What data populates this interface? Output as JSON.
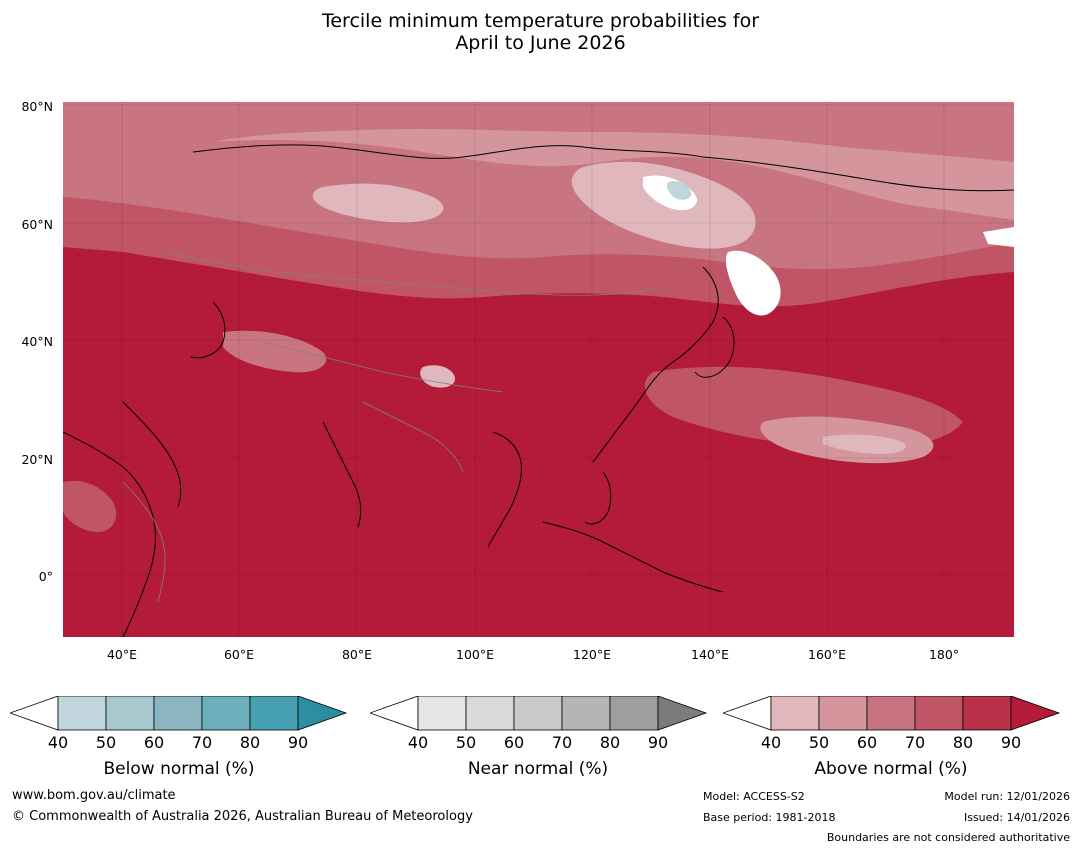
{
  "title_line1": "Tercile minimum temperature probabilities for",
  "title_line2": "April to June 2026",
  "lat_ticks": [
    "80°N",
    "60°N",
    "40°N",
    "20°N",
    "0°"
  ],
  "lon_ticks": [
    "40°E",
    "60°E",
    "80°E",
    "100°E",
    "120°E",
    "140°E",
    "160°E",
    "180°"
  ],
  "colorbars": [
    {
      "label": "Below normal (%)",
      "ticks": [
        "40",
        "50",
        "60",
        "70",
        "80",
        "90"
      ],
      "colors": [
        "#c0d6dc",
        "#a8c8cf",
        "#8bb5c0",
        "#6daebd",
        "#47a1b2",
        "#2b8ea2"
      ]
    },
    {
      "label": "Near normal (%)",
      "ticks": [
        "40",
        "50",
        "60",
        "70",
        "80",
        "90"
      ],
      "colors": [
        "#e6e6e6",
        "#d9d9d9",
        "#cacaca",
        "#b5b5b5",
        "#9f9f9f",
        "#7c7c7c"
      ]
    },
    {
      "label": "Above normal (%)",
      "ticks": [
        "40",
        "50",
        "60",
        "70",
        "80",
        "90"
      ],
      "colors": [
        "#dfb7bd",
        "#d4959d",
        "#c97581",
        "#c05566",
        "#b8334a",
        "#b31b38"
      ]
    }
  ],
  "footer": {
    "website": "www.bom.gov.au/climate",
    "copyright": "© Commonwealth of Australia 2026, Australian Bureau of Meteorology",
    "model": "Model: ACCESS-S2",
    "base_period": "Base period: 1981-2018",
    "model_run": "Model run: 12/01/2026",
    "issued": "Issued: 14/01/2026",
    "disclaimer": "Boundaries are not considered authoritative"
  },
  "map_colors": {
    "ocean_base": "#b31b38",
    "white": "#ffffff",
    "near_blue": "#c0d6dc"
  }
}
